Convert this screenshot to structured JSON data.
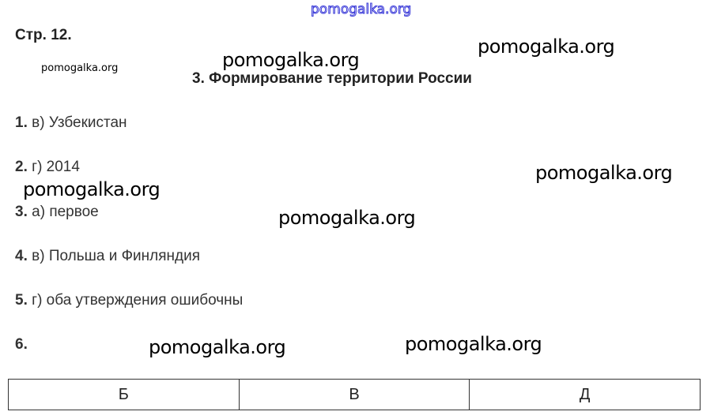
{
  "top_watermark": "pomogalka.org",
  "page_label": "Стр. 12.",
  "title": "3. Формирование территории России",
  "watermarks": [
    "pomogalka.org",
    "pomogalka.org",
    "pomogalka.org",
    "pomogalka.org",
    "pomogalka.org",
    "pomogalka.org",
    "pomogalka.org",
    "pomogalka.org"
  ],
  "answers": [
    {
      "num": "1.",
      "text": "в) Узбекистан"
    },
    {
      "num": "2.",
      "text": "г) 2014"
    },
    {
      "num": "3.",
      "text": "а) первое"
    },
    {
      "num": "4.",
      "text": "в) Польша и Финляндия"
    },
    {
      "num": "5.",
      "text": "г) оба утверждения ошибочны"
    },
    {
      "num": "6.",
      "text": ""
    }
  ],
  "table": {
    "cells": [
      "Б",
      "В",
      "Д"
    ]
  }
}
